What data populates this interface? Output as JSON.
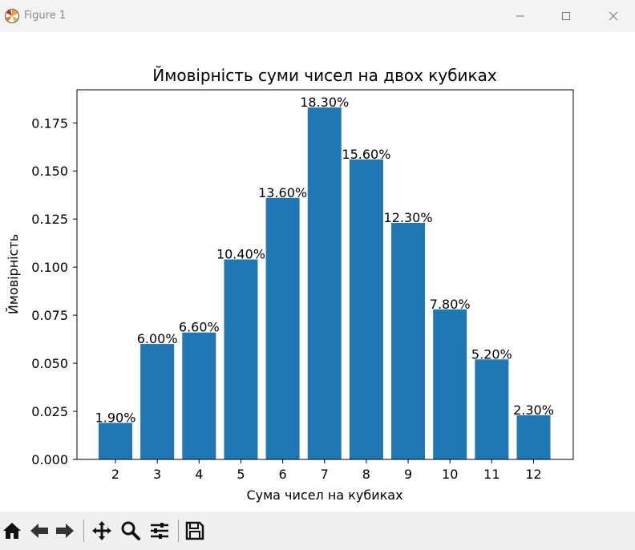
{
  "window": {
    "title": "Figure 1"
  },
  "colors": {
    "bar": "#1f77b4",
    "titlebar_bg": "#f3f3f3",
    "toolbar_bg": "#f0f0f0"
  },
  "toolbar": {
    "icons": [
      "home-icon",
      "back-arrow-icon",
      "forward-arrow-icon",
      "pan-icon",
      "zoom-icon",
      "configure-subplots-icon",
      "save-icon"
    ]
  },
  "chart_data": {
    "type": "bar",
    "title": "Ймовірність суми чисел на двох кубиках",
    "xlabel": "Сума чисел на кубиках",
    "ylabel": "Ймовірність",
    "categories": [
      "2",
      "3",
      "4",
      "5",
      "6",
      "7",
      "8",
      "9",
      "10",
      "11",
      "12"
    ],
    "values": [
      0.019,
      0.06,
      0.066,
      0.104,
      0.136,
      0.183,
      0.156,
      0.123,
      0.078,
      0.052,
      0.023
    ],
    "data_labels": [
      "1.90%",
      "6.00%",
      "6.60%",
      "10.40%",
      "13.60%",
      "18.30%",
      "15.60%",
      "12.30%",
      "7.80%",
      "5.20%",
      "2.30%"
    ],
    "yticks": [
      0.0,
      0.025,
      0.05,
      0.075,
      0.1,
      0.125,
      0.15,
      0.175
    ],
    "ytick_labels": [
      "0.000",
      "0.025",
      "0.050",
      "0.075",
      "0.100",
      "0.125",
      "0.150",
      "0.175"
    ],
    "ylim": [
      0,
      0.1922
    ],
    "grid": false
  }
}
